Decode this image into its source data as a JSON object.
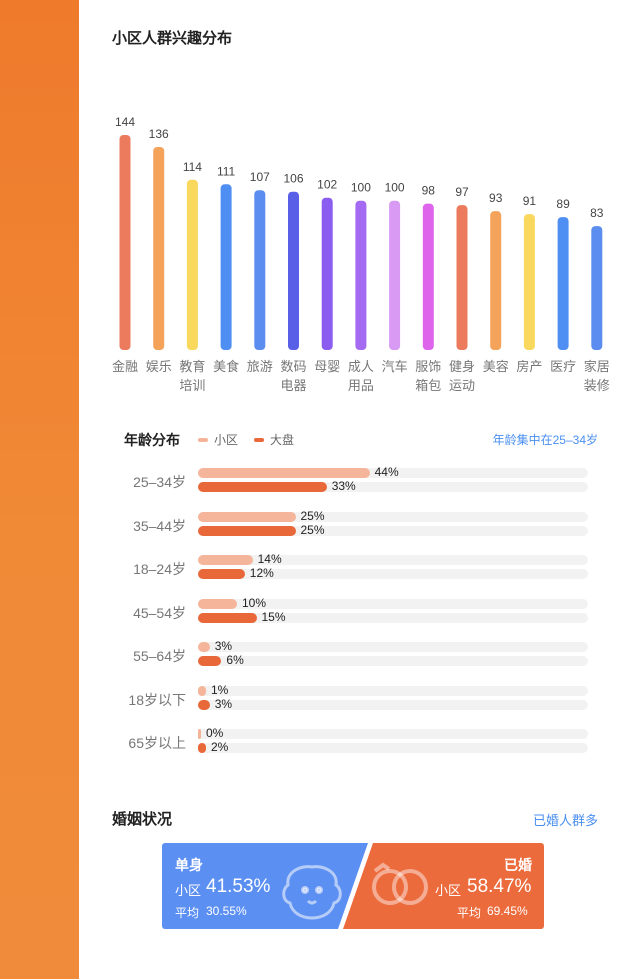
{
  "interest_section": {
    "title": "小区人群兴趣分布"
  },
  "chart_data": [
    {
      "type": "bar",
      "categories": [
        "金融",
        "娱乐",
        "教育培训",
        "美食",
        "旅游",
        "数码电器",
        "母婴",
        "成人用品",
        "汽车",
        "服饰箱包",
        "健身运动",
        "美容",
        "房产",
        "医疗",
        "家居装修"
      ],
      "category_lines": [
        [
          "金融"
        ],
        [
          "娱乐"
        ],
        [
          "教育",
          "培训"
        ],
        [
          "美食"
        ],
        [
          "旅游"
        ],
        [
          "数码",
          "电器"
        ],
        [
          "母婴"
        ],
        [
          "成人",
          "用品"
        ],
        [
          "汽车"
        ],
        [
          "服饰",
          "箱包"
        ],
        [
          "健身",
          "运动"
        ],
        [
          "美容"
        ],
        [
          "房产"
        ],
        [
          "医疗"
        ],
        [
          "家居",
          "装修"
        ]
      ],
      "values": [
        144,
        136,
        114,
        111,
        107,
        106,
        102,
        100,
        100,
        98,
        97,
        93,
        91,
        89,
        83
      ],
      "colors": [
        "#ec7a5c",
        "#f5a35a",
        "#f8d95e",
        "#4f8ef3",
        "#5b8cf0",
        "#5a5fe8",
        "#8a5cf0",
        "#a56af2",
        "#d99af3",
        "#de64ec",
        "#ec7a5c",
        "#f5a35a",
        "#f8d95e",
        "#4f8ef3",
        "#5b8cf0"
      ],
      "title": "",
      "xlabel": "",
      "ylabel": ""
    },
    {
      "type": "bar",
      "orientation": "horizontal",
      "title": "年龄分布",
      "categories": [
        "25–34岁",
        "35–44岁",
        "18–24岁",
        "45–54岁",
        "55–64岁",
        "18岁以下",
        "65岁以上"
      ],
      "series": [
        {
          "name": "小区",
          "values": [
            44,
            25,
            14,
            10,
            3,
            1,
            0
          ],
          "labels": [
            "44%",
            "25%",
            "14%",
            "10%",
            "3%",
            "1%",
            "0%"
          ],
          "color": "#f4b59a"
        },
        {
          "name": "大盘",
          "values": [
            33,
            25,
            12,
            15,
            6,
            3,
            2
          ],
          "labels": [
            "33%",
            "25%",
            "12%",
            "15%",
            "6%",
            "3%",
            "2%"
          ],
          "color": "#e8683a"
        }
      ],
      "xlim": [
        0,
        100
      ]
    }
  ],
  "age_section": {
    "title": "年龄分布",
    "legend": {
      "xiaoqu": "小区",
      "dapan": "大盘"
    },
    "note": "年龄集中在25–34岁"
  },
  "marriage_section": {
    "title": "婚姻状况",
    "note": "已婚人群多",
    "single": {
      "label": "单身",
      "sub": "小区",
      "value": "41.53%",
      "avg_label": "平均",
      "avg_value": "30.55%",
      "share": 41.53,
      "color": "#5c8ff2"
    },
    "married": {
      "label": "已婚",
      "sub": "小区",
      "value": "58.47%",
      "avg_label": "平均",
      "avg_value": "69.45%",
      "share": 58.47,
      "color": "#ec6b3d"
    }
  },
  "icons": {
    "single": "dog-face-icon",
    "married": "rings-icon"
  }
}
